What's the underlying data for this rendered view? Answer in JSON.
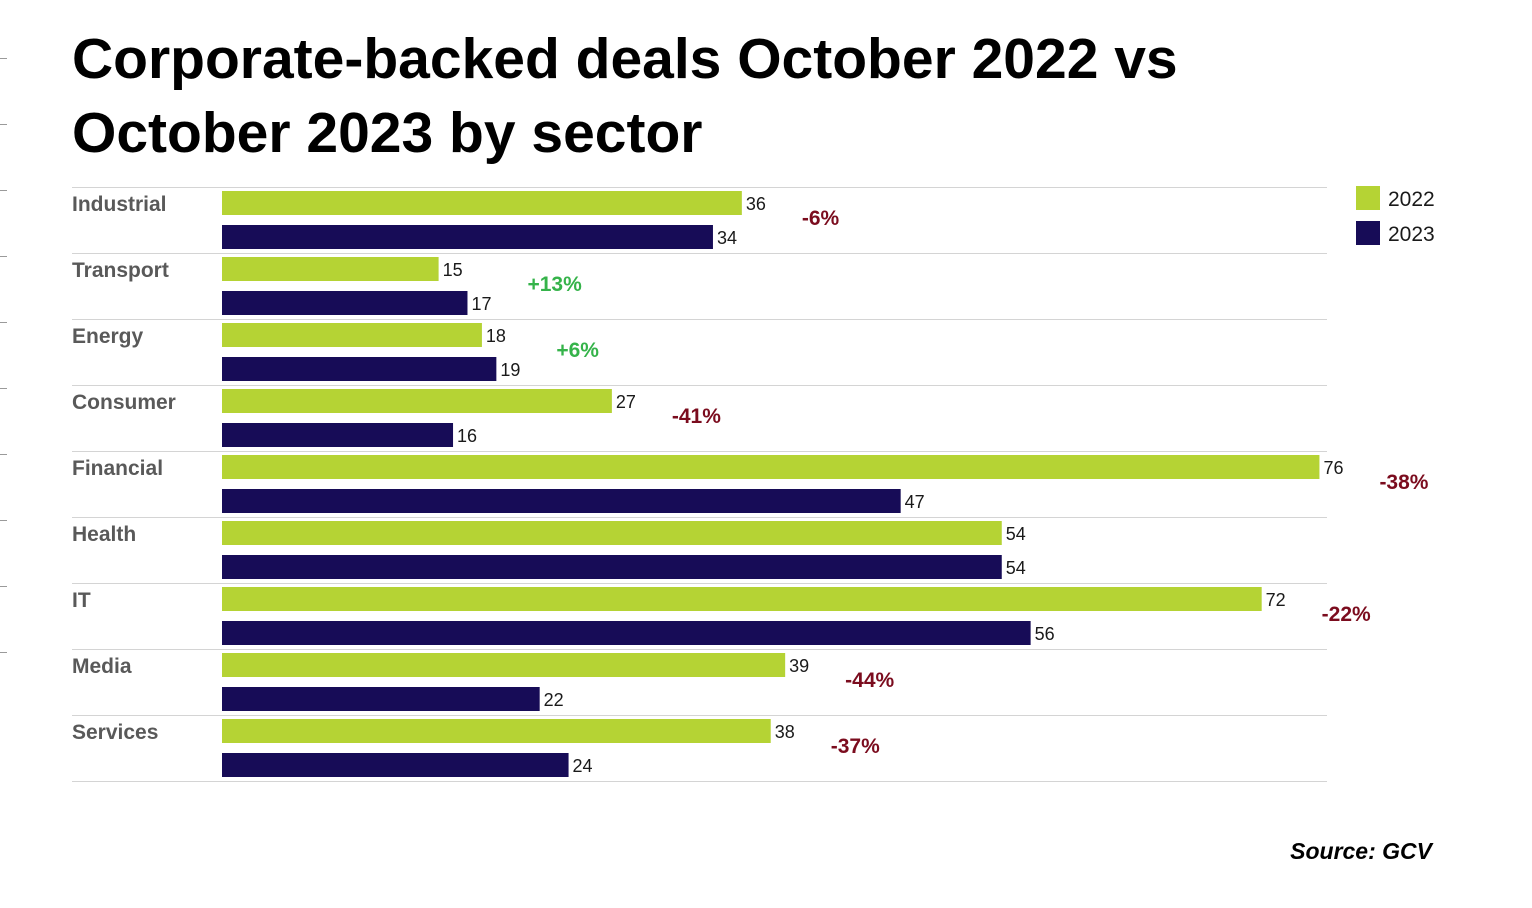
{
  "title": "Corporate-backed deals October 2022 vs October 2023 by sector",
  "source": "Source: GCV",
  "colors": {
    "series_2022": "#b5d334",
    "series_2023": "#170c57",
    "change_negative": "#7b0c1e",
    "change_positive": "#35b34a",
    "category_text": "#595959",
    "gridline": "#d4d4d4"
  },
  "chart_data": {
    "type": "bar",
    "orientation": "horizontal",
    "categories": [
      "Industrial",
      "Transport",
      "Energy",
      "Consumer",
      "Financial",
      "Health",
      "IT",
      "Media",
      "Services"
    ],
    "series": [
      {
        "name": "2022",
        "values": [
          36,
          15,
          18,
          27,
          76,
          54,
          72,
          39,
          38
        ]
      },
      {
        "name": "2023",
        "values": [
          34,
          17,
          19,
          16,
          47,
          54,
          56,
          22,
          24
        ]
      }
    ],
    "annotations": [
      "-6%",
      "+13%",
      "+6%",
      "-41%",
      "-38%",
      "",
      "-22%",
      "-44%",
      "-37%"
    ],
    "legend_position": "top-right",
    "grid": true
  }
}
